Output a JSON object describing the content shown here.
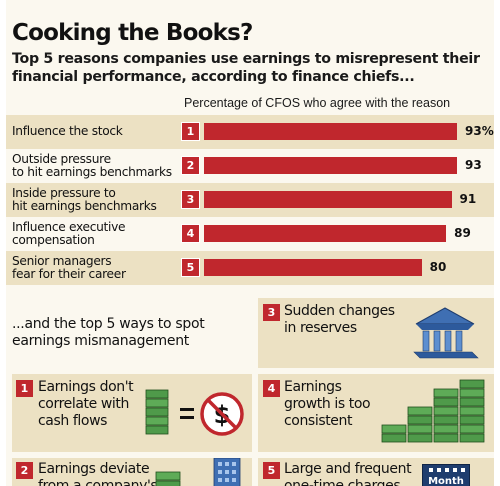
{
  "title": "Cooking the Books?",
  "subtitle": "Top 5 reasons companies use earnings to misrepresent their financial performance, according to finance chiefs...",
  "chart_data": {
    "type": "bar",
    "orientation": "horizontal",
    "title": "Cooking the Books?",
    "column_header": "Percentage of CFOS who agree with the reason",
    "categories": [
      "Influence the stock",
      "Outside pressure to hit earnings benchmarks",
      "Inside pressure to hit earnings benchmarks",
      "Influence executive compensation",
      "Senior managers fear for their career"
    ],
    "label_lines": [
      [
        "Influence the stock"
      ],
      [
        "Outside pressure",
        "to hit earnings benchmarks"
      ],
      [
        "Inside pressure to",
        "hit earnings benchmarks"
      ],
      [
        "Influence executive",
        "compensation"
      ],
      [
        "Senior managers",
        "fear for their career"
      ]
    ],
    "ranks": [
      "1",
      "2",
      "3",
      "4",
      "5"
    ],
    "values": [
      93,
      93,
      91,
      89,
      80
    ],
    "value_labels": [
      "93%",
      "93",
      "91",
      "89",
      "80"
    ],
    "xlim": [
      0,
      93
    ],
    "grid": false,
    "colors": {
      "bar": "#c0272d",
      "shade": "#ece1c3",
      "background": "#fbf8ef"
    }
  },
  "ways_heading": [
    "...and the top 5 ways to spot",
    "earnings mismanagement"
  ],
  "ways": [
    {
      "rank": "1",
      "lines": [
        "Earnings don't",
        "correlate with",
        "cash flows"
      ],
      "icon": "cash-not-equal-icon"
    },
    {
      "rank": "2",
      "lines": [
        "Earnings deviate",
        "from a company's"
      ],
      "icon": "building-icon"
    },
    {
      "rank": "3",
      "lines": [
        "Sudden changes",
        "in reserves"
      ],
      "icon": "bank-icon"
    },
    {
      "rank": "4",
      "lines": [
        "Earnings",
        "growth is too",
        "consistent"
      ],
      "icon": "rising-cash-stacks-icon"
    },
    {
      "rank": "5",
      "lines": [
        "Large and frequent",
        "one-time charges"
      ],
      "icon": "calendar-icon"
    }
  ],
  "calendar_label": "Month"
}
